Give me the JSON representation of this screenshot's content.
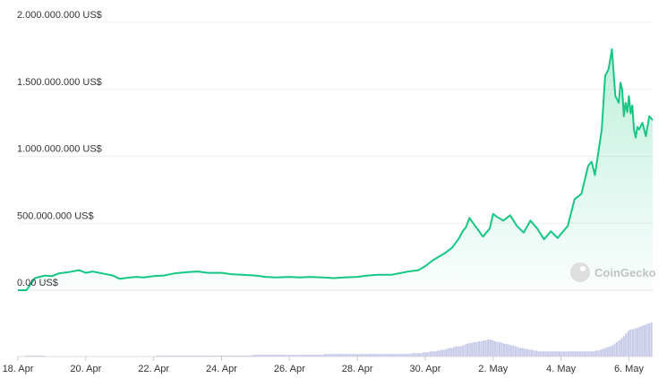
{
  "chart_data": {
    "type": "area",
    "y_unit": "US$",
    "y_ticks": [
      "2.000.000.000 US$",
      "1.500.000.000 US$",
      "1.000.000.000 US$",
      "500.000.000 US$",
      "0.00 US$"
    ],
    "y_tick_values": [
      2000000000,
      1500000000,
      1000000000,
      500000000,
      0
    ],
    "ylim": [
      0,
      2000000000
    ],
    "x_ticks": [
      "18. Apr",
      "20. Apr",
      "22. Apr",
      "24. Apr",
      "26. Apr",
      "28. Apr",
      "30. Apr",
      "2. May",
      "4. May",
      "6. May"
    ],
    "x_tick_values": [
      0,
      2,
      4,
      6,
      8,
      10,
      12,
      14,
      16,
      18
    ],
    "x_note": "x values are days counted from 18. Apr",
    "series": [
      {
        "name": "",
        "x": [
          0,
          0.1,
          0.25,
          0.5,
          0.8,
          1.0,
          1.2,
          1.5,
          1.8,
          2.0,
          2.2,
          2.5,
          2.8,
          3.0,
          3.3,
          3.5,
          3.7,
          4.0,
          4.3,
          4.6,
          5.0,
          5.3,
          5.6,
          6.0,
          6.3,
          6.6,
          7.0,
          7.3,
          7.6,
          8.0,
          8.3,
          8.6,
          9.0,
          9.3,
          9.6,
          10.0,
          10.3,
          10.6,
          11.0,
          11.3,
          11.5,
          11.8,
          12.0,
          12.2,
          12.4,
          12.6,
          12.8,
          13.0,
          13.1,
          13.2,
          13.3,
          13.5,
          13.7,
          13.9,
          14.0,
          14.1,
          14.3,
          14.5,
          14.7,
          14.9,
          15.1,
          15.3,
          15.5,
          15.7,
          15.9,
          16.0,
          16.2,
          16.4,
          16.6,
          16.8,
          16.9,
          17.0,
          17.2,
          17.3,
          17.4,
          17.5,
          17.6,
          17.7,
          17.75,
          17.8,
          17.85,
          17.9,
          17.95,
          18.0,
          18.05,
          18.1,
          18.15,
          18.2,
          18.25,
          18.3,
          18.4,
          18.5,
          18.6,
          18.7
        ],
        "values": [
          0,
          0,
          0,
          90000000,
          110000000,
          105000000,
          125000000,
          135000000,
          150000000,
          130000000,
          140000000,
          125000000,
          110000000,
          85000000,
          95000000,
          100000000,
          95000000,
          105000000,
          110000000,
          125000000,
          135000000,
          140000000,
          130000000,
          130000000,
          120000000,
          115000000,
          110000000,
          100000000,
          95000000,
          100000000,
          95000000,
          100000000,
          95000000,
          90000000,
          95000000,
          100000000,
          110000000,
          115000000,
          115000000,
          130000000,
          140000000,
          150000000,
          180000000,
          220000000,
          250000000,
          280000000,
          320000000,
          390000000,
          440000000,
          470000000,
          540000000,
          470000000,
          400000000,
          460000000,
          570000000,
          550000000,
          520000000,
          560000000,
          480000000,
          430000000,
          520000000,
          460000000,
          380000000,
          440000000,
          390000000,
          420000000,
          480000000,
          680000000,
          720000000,
          930000000,
          960000000,
          860000000,
          1200000000,
          1600000000,
          1650000000,
          1800000000,
          1450000000,
          1400000000,
          1550000000,
          1500000000,
          1300000000,
          1400000000,
          1330000000,
          1450000000,
          1320000000,
          1380000000,
          1200000000,
          1140000000,
          1220000000,
          1200000000,
          1250000000,
          1150000000,
          1300000000,
          1270000000
        ]
      }
    ],
    "volume_bars": [
      0,
      0,
      0,
      1,
      1,
      1,
      1,
      1,
      1,
      1,
      1,
      1,
      0,
      0,
      0,
      0,
      0,
      0,
      0,
      0,
      0,
      0,
      0,
      0,
      0,
      0,
      0,
      0,
      0,
      0,
      0,
      0,
      0,
      0,
      0,
      0,
      0,
      0,
      0,
      0,
      0,
      0,
      0,
      0,
      0,
      0,
      0,
      0,
      0,
      0,
      0,
      0,
      0,
      0,
      0,
      0,
      0,
      0,
      0,
      0,
      1,
      1,
      1,
      1,
      1,
      1,
      1,
      1,
      1,
      1,
      1,
      1,
      1,
      1,
      1,
      1,
      1,
      1,
      1,
      1,
      1,
      1,
      1,
      1,
      1,
      1,
      1,
      1,
      1,
      1,
      1,
      1,
      1,
      1,
      1,
      1,
      1,
      1,
      1,
      1,
      1,
      1,
      2,
      2,
      2,
      2,
      2,
      2,
      2,
      2,
      2,
      2,
      2,
      2,
      2,
      2,
      2,
      2,
      2,
      2,
      2,
      2,
      2,
      2,
      2,
      2,
      2,
      2,
      2,
      2,
      2,
      2,
      2,
      3,
      3,
      3,
      3,
      3,
      3,
      3,
      3,
      3,
      3,
      3,
      3,
      3,
      3,
      3,
      3,
      3,
      3,
      3,
      3,
      3,
      3,
      3,
      3,
      3,
      3,
      3,
      3,
      3,
      3,
      3,
      3,
      3,
      3,
      3,
      3,
      3,
      3,
      4,
      4,
      4,
      4,
      4,
      5,
      5,
      5,
      6,
      6,
      6,
      7,
      7,
      8,
      8,
      9,
      10,
      10,
      11,
      12,
      12,
      12,
      13,
      14,
      15,
      16,
      16,
      17,
      17,
      18,
      18,
      19,
      19,
      20,
      20,
      19,
      18,
      17,
      17,
      16,
      15,
      15,
      14,
      13,
      13,
      12,
      11,
      10,
      10,
      9,
      9,
      8,
      8,
      7,
      7,
      6,
      6,
      6,
      6,
      6,
      6,
      6,
      6,
      6,
      6,
      6,
      6,
      6,
      6,
      6,
      6,
      6,
      6,
      6,
      6,
      6,
      6,
      6,
      6,
      6,
      7,
      7,
      8,
      9,
      10,
      11,
      12,
      13,
      15,
      17,
      19,
      21,
      24,
      27,
      30,
      32,
      32,
      33,
      34,
      35,
      36,
      37,
      38,
      39,
      40
    ],
    "line_color": "#16c784",
    "area_color": "#16c784",
    "volume_color": "#c8cce8",
    "grid": true,
    "legend": "none"
  },
  "watermark": {
    "text": "CoinGecko",
    "icon": "gecko-logo-icon"
  }
}
